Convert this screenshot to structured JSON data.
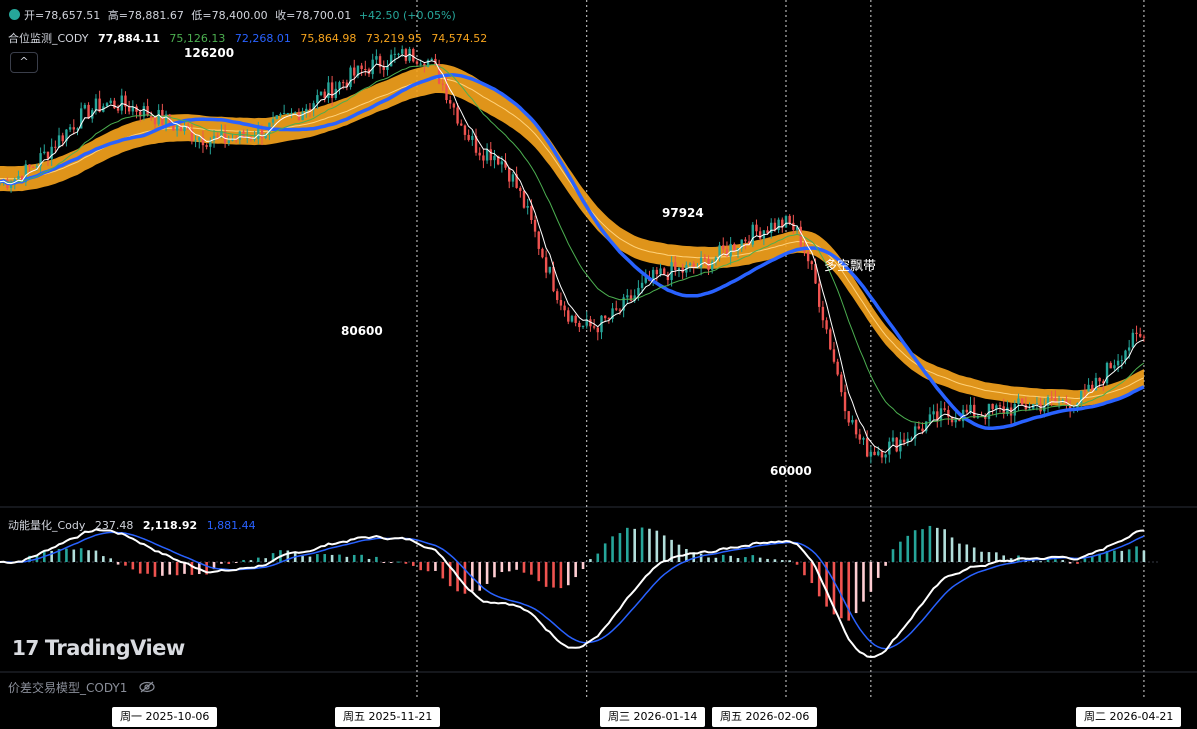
{
  "ohlc": {
    "open_label": "开=78,657.51",
    "high_label": "高=78,881.67",
    "low_label": "低=78,400.00",
    "close_label": "收=78,700.01",
    "change_label": "+42.50 (+0.05%)",
    "change_color": "#26a69a"
  },
  "indicator_main": {
    "name": "合位监测_CODY",
    "values": [
      "77,884.11",
      "75,126.13",
      "72,268.01",
      "75,864.98",
      "73,219.95",
      "74,574.52"
    ],
    "colors": [
      "#ffffff",
      "#4caf50",
      "#2962ff",
      "#f7a41d",
      "#f7a41d",
      "#f7a41d"
    ]
  },
  "indicator_sub": {
    "name": "动能量化_Cody",
    "values": [
      "237.48",
      "2,118.92",
      "1,881.44"
    ],
    "colors": [
      "#d1d4dc",
      "#ffffff",
      "#2962ff"
    ]
  },
  "indicator_hidden": {
    "name": "价差交易模型_CODY1",
    "icon": "eye-off-icon"
  },
  "collapse_button": {
    "label": "^"
  },
  "annotations": {
    "high": "126200",
    "low1": "80600",
    "mid_high": "97924",
    "band_label": "多空飘带",
    "low2": "60000"
  },
  "branding": {
    "logo_text": "TradingView",
    "logo_mark": "17"
  },
  "x_axis": {
    "labels": [
      "周一 2025-10-06",
      "周五 2025-11-21",
      "周三 2026-01-14",
      "周五 2026-02-06",
      "周二 2026-04-21"
    ]
  },
  "colors": {
    "up": "#26a69a",
    "down": "#ef5350",
    "band": "#f7a41d",
    "slow_ma": "#2962ff",
    "fast_ma": "#ffffff",
    "mid_ma": "#4caf50"
  },
  "chart_data": {
    "type": "candlestick",
    "price_anchors": [
      {
        "date": "2025-06-15",
        "price": 105000
      },
      {
        "date": "2025-07-15",
        "price": 118000
      },
      {
        "date": "2025-08-14",
        "price": 112000
      },
      {
        "date": "2025-10-06",
        "price": 126200
      },
      {
        "date": "2025-10-25",
        "price": 110000
      },
      {
        "date": "2025-11-21",
        "price": 80600
      },
      {
        "date": "2025-12-15",
        "price": 90000
      },
      {
        "date": "2026-01-14",
        "price": 97924
      },
      {
        "date": "2026-02-06",
        "price": 60000
      },
      {
        "date": "2026-03-01",
        "price": 66000
      },
      {
        "date": "2026-04-01",
        "price": 68000
      },
      {
        "date": "2026-04-21",
        "price": 78700
      }
    ],
    "band": {
      "name": "多空飘带",
      "start": 112000,
      "end": 72000
    },
    "oscillator": {
      "name": "动能量化_Cody",
      "dif": 2118.92,
      "dea": 1881.44,
      "hist": 237.48
    }
  }
}
